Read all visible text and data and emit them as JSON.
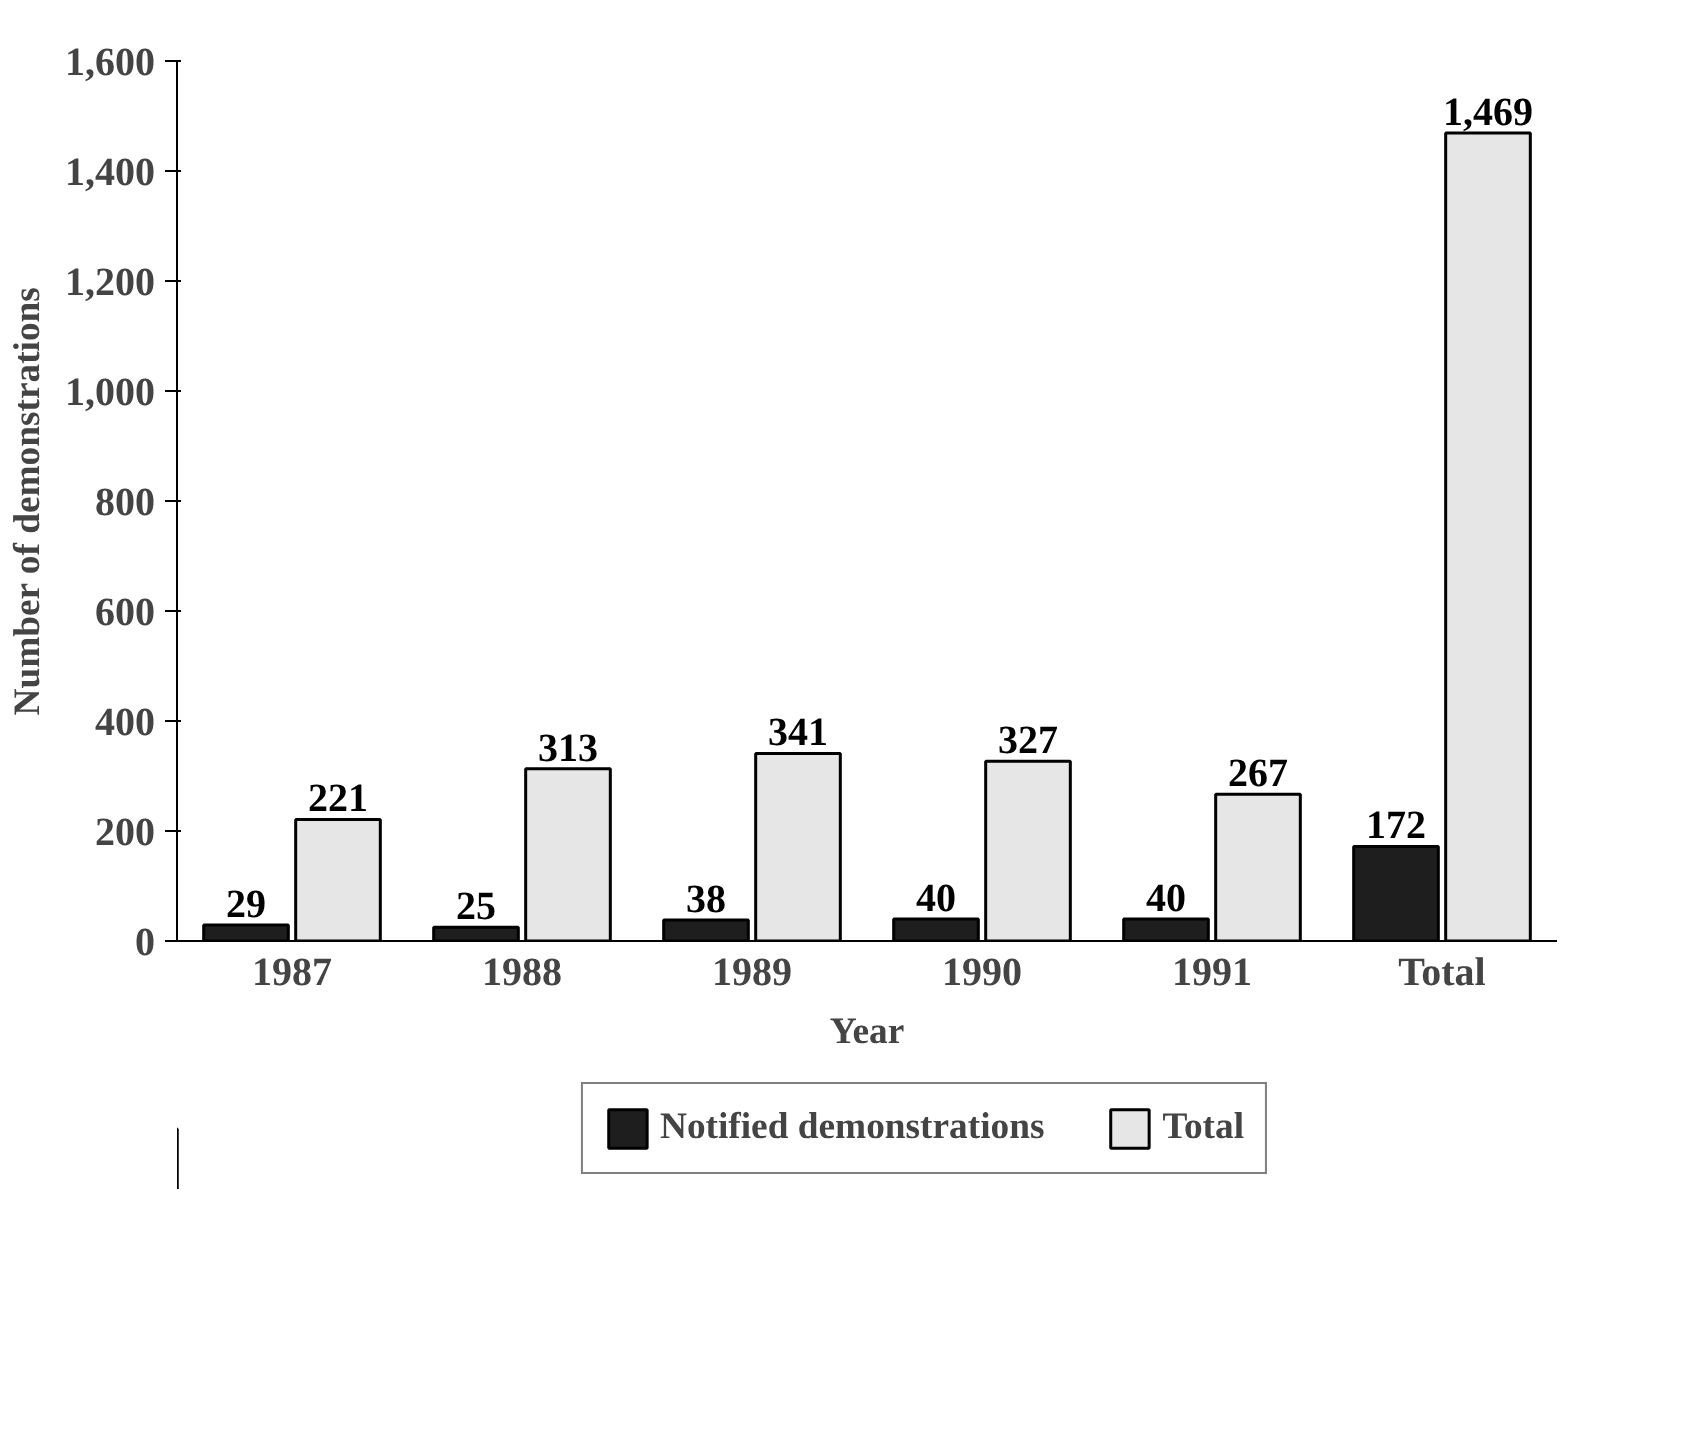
{
  "chart_data": {
    "type": "bar",
    "xlabel": "Year",
    "ylabel": "Number of demonstrations",
    "categories": [
      "1987",
      "1988",
      "1989",
      "1990",
      "1991",
      "Total"
    ],
    "series": [
      {
        "name": "Notified demonstrations",
        "color": "#1e1e1e",
        "values": [
          29,
          25,
          38,
          40,
          40,
          172
        ],
        "value_labels": [
          "29",
          "25",
          "38",
          "40",
          "40",
          "172"
        ]
      },
      {
        "name": "Total",
        "color": "#e6e6e6",
        "values": [
          221,
          313,
          341,
          327,
          267,
          1469
        ],
        "value_labels": [
          "221",
          "313",
          "341",
          "327",
          "267",
          "1,469"
        ]
      }
    ],
    "ylim": [
      0,
      1600
    ],
    "yticks": [
      0,
      200,
      400,
      600,
      800,
      {
        "value": 1000,
        "label": "1,000"
      },
      {
        "value": 1200,
        "label": "1,200"
      },
      {
        "value": 1400,
        "label": "1,400"
      },
      {
        "value": 1600,
        "label": "1,600"
      }
    ],
    "grid": false,
    "legend": "bottom"
  }
}
